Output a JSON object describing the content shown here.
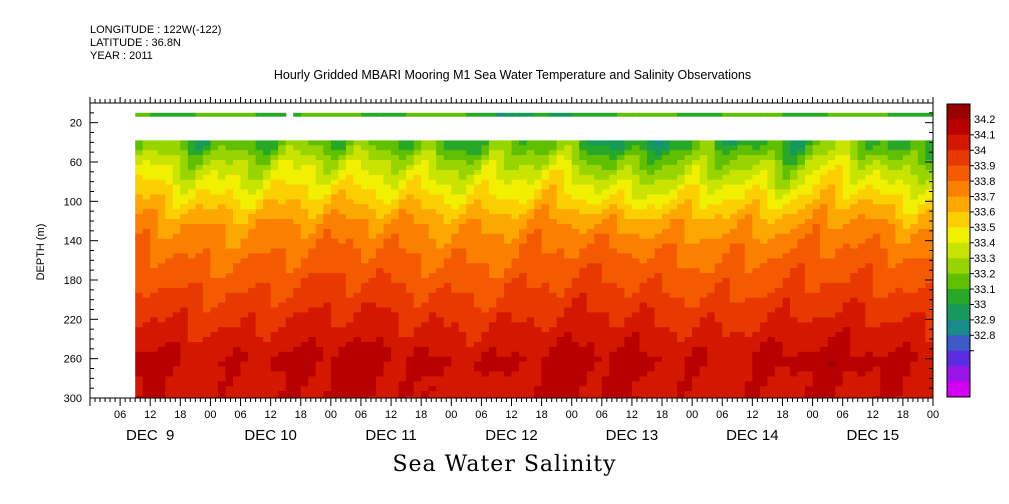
{
  "header": {
    "longitude": "LONGITUDE : 122W(-122)",
    "latitude": "LATITUDE : 36.8N",
    "year": "YEAR : 2011"
  },
  "title": "Hourly Gridded MBARI Mooring M1 Sea Water Temperature and Salinity Observations",
  "variable_title": "Sea Water Salinity",
  "chart_data": {
    "type": "heatmap",
    "title": "Hourly Gridded MBARI Mooring M1 Sea Water Temperature and Salinity Observations",
    "variable": "Sea Water Salinity",
    "ylabel": "DEPTH (m)",
    "xlabel": "",
    "y_inverted": true,
    "ylim": [
      0,
      300
    ],
    "y_ticks": [
      20,
      60,
      100,
      140,
      180,
      220,
      260,
      300
    ],
    "x_range_hours": [
      0,
      168
    ],
    "x_hour_ticks": [
      "06",
      "12",
      "18",
      "00",
      "06",
      "12",
      "18",
      "00",
      "06",
      "12",
      "18",
      "00",
      "06",
      "12",
      "18",
      "00",
      "06",
      "12",
      "18",
      "00",
      "06",
      "12",
      "18",
      "00",
      "06",
      "12",
      "18",
      "00",
      "06",
      "12",
      "18",
      "00"
    ],
    "days": [
      "DEC  9",
      "DEC 10",
      "DEC 11",
      "DEC 12",
      "DEC 13",
      "DEC 14",
      "DEC 15"
    ],
    "colorbar": {
      "levels": [
        "34.2",
        "34.1",
        "34",
        "33.9",
        "33.8",
        "33.7",
        "33.6",
        "33.5",
        "33.4",
        "33.3",
        "33.2",
        "33.1",
        "33",
        "32.9",
        "32.8"
      ],
      "colors": [
        "#9a0000",
        "#b80000",
        "#d41800",
        "#e83a00",
        "#f45a00",
        "#fc8000",
        "#fca800",
        "#fcd000",
        "#f0f000",
        "#c8e400",
        "#98d400",
        "#60c000",
        "#28a828",
        "#169a5a",
        "#1a8a8a",
        "#3c5ac8",
        "#5a2ee0",
        "#9a16e8",
        "#d200f2"
      ]
    },
    "surface_row": {
      "depth_range": [
        10,
        14
      ],
      "value_approx": 33.3
    },
    "data_start_hour": 9,
    "surface_gap_hours": [
      38,
      39.5
    ],
    "profile": {
      "depth": [
        40,
        60,
        80,
        100,
        120,
        140,
        160,
        180,
        200,
        220,
        240,
        260,
        280,
        300
      ],
      "salinity_typical": [
        33.35,
        33.5,
        33.6,
        33.7,
        33.8,
        33.85,
        33.9,
        33.95,
        34.0,
        34.05,
        34.1,
        34.15,
        34.12,
        34.12
      ]
    }
  }
}
